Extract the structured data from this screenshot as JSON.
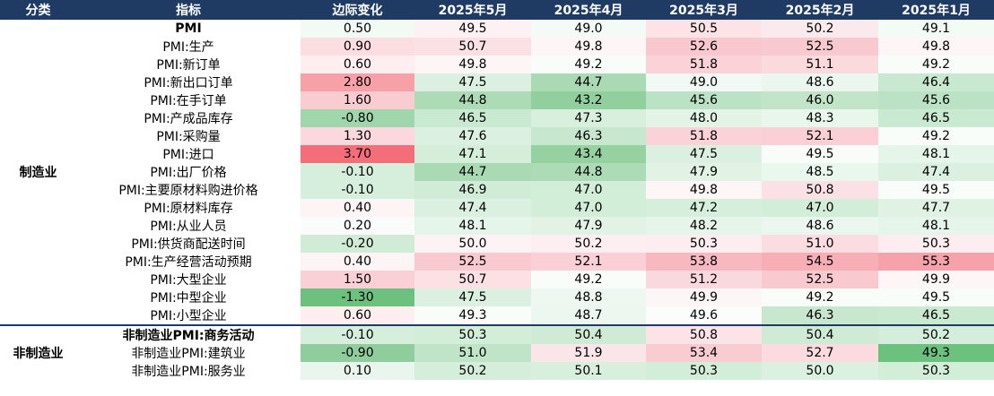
{
  "headers": [
    "分类",
    "指标",
    "边际变化",
    "2025年5月",
    "2025年4月",
    "2025年3月",
    "2025年2月",
    "2025年1月"
  ],
  "categories": [
    {
      "label": "制造业",
      "row_count": 17
    },
    {
      "label": "非制造业",
      "row_count": 3
    }
  ],
  "rows": [
    {
      "name": "PMI",
      "bold": true,
      "values": [
        "0.50",
        "49.5",
        "49.0",
        "50.5",
        "50.2",
        "49.1"
      ],
      "colors": [
        "#f1faf3",
        "#fef1f3",
        "#f4fbf6",
        "#fde2e6",
        "#fbeaed",
        "#f3fbf5"
      ]
    },
    {
      "name": "PMI:生产",
      "bold": false,
      "values": [
        "0.90",
        "50.7",
        "49.8",
        "52.6",
        "52.5",
        "49.8"
      ],
      "colors": [
        "#fcdde2",
        "#fbe0e4",
        "#fdf5f6",
        "#f9c7ce",
        "#f9c9d0",
        "#fdf5f6"
      ]
    },
    {
      "name": "PMI:新订单",
      "bold": false,
      "values": [
        "0.60",
        "49.8",
        "49.2",
        "51.8",
        "51.1",
        "49.2"
      ],
      "colors": [
        "#feeef0",
        "#fdf5f6",
        "#f8fdf9",
        "#fad2d8",
        "#fbdade",
        "#f8fdf9"
      ]
    },
    {
      "name": "PMI:新出口订单",
      "bold": false,
      "values": [
        "2.80",
        "47.5",
        "44.7",
        "49.0",
        "48.6",
        "46.4"
      ],
      "colors": [
        "#f7a0a8",
        "#dcf0e1",
        "#a9dab4",
        "#f0f9f3",
        "#ebf7ee",
        "#c8e8cf"
      ]
    },
    {
      "name": "PMI:在手订单",
      "bold": false,
      "values": [
        "1.60",
        "44.8",
        "43.2",
        "45.6",
        "46.0",
        "45.6"
      ],
      "colors": [
        "#f9ccd2",
        "#acdbb6",
        "#92cf9f",
        "#bbe2c4",
        "#c2e5ca",
        "#bbe2c4"
      ]
    },
    {
      "name": "PMI:产成品库存",
      "bold": false,
      "values": [
        "-0.80",
        "46.5",
        "47.3",
        "48.0",
        "48.3",
        "46.5"
      ],
      "colors": [
        "#a0d6ab",
        "#cae9d1",
        "#d8efde",
        "#e3f4e7",
        "#e8f6eb",
        "#cae9d1"
      ]
    },
    {
      "name": "PMI:采购量",
      "bold": false,
      "values": [
        "1.30",
        "47.6",
        "46.3",
        "51.8",
        "52.1",
        "49.2"
      ],
      "colors": [
        "#fbd8dd",
        "#dbf0e0",
        "#c7e7ce",
        "#fad2d8",
        "#facfd5",
        "#f8fdf9"
      ]
    },
    {
      "name": "PMI:进口",
      "bold": false,
      "values": [
        "3.70",
        "47.1",
        "43.4",
        "47.5",
        "49.5",
        "48.1"
      ],
      "colors": [
        "#f46e79",
        "#d4eeda",
        "#96d1a2",
        "#dcf0e1",
        "#f9fdfa",
        "#e5f5e9"
      ]
    },
    {
      "name": "PMI:出厂价格",
      "bold": false,
      "values": [
        "-0.10",
        "44.7",
        "44.8",
        "47.9",
        "48.5",
        "47.4"
      ],
      "colors": [
        "#d6eedc",
        "#a9dab4",
        "#acdbb6",
        "#e2f3e6",
        "#eaf7ed",
        "#dbf0e0"
      ]
    },
    {
      "name": "PMI:主要原材料购进价格",
      "bold": false,
      "values": [
        "-0.10",
        "46.9",
        "47.0",
        "49.8",
        "50.8",
        "49.5"
      ],
      "colors": [
        "#d6eedc",
        "#d0ecd6",
        "#d2edd8",
        "#fdf5f6",
        "#fbe1e5",
        "#f9fdfa"
      ]
    },
    {
      "name": "PMI:原材料库存",
      "bold": false,
      "values": [
        "0.40",
        "47.4",
        "47.0",
        "47.2",
        "47.0",
        "47.7"
      ],
      "colors": [
        "#fdf4f5",
        "#dbf0e0",
        "#d2edd8",
        "#d6eedc",
        "#d2edd8",
        "#dff2e4"
      ]
    },
    {
      "name": "PMI:从业人员",
      "bold": false,
      "values": [
        "0.20",
        "48.1",
        "47.9",
        "48.2",
        "48.6",
        "48.1"
      ],
      "colors": [
        "#f9fcfa",
        "#e5f5e9",
        "#e2f3e6",
        "#e6f5ea",
        "#ebf7ee",
        "#e5f5e9"
      ]
    },
    {
      "name": "PMI:供货商配送时间",
      "bold": false,
      "values": [
        "-0.20",
        "50.0",
        "50.2",
        "50.3",
        "51.0",
        "50.3"
      ],
      "colors": [
        "#d0ebd6",
        "#fef3f4",
        "#fdeff1",
        "#fdedf0",
        "#fbdde1",
        "#fdedf0"
      ]
    },
    {
      "name": "PMI:生产经营活动预期",
      "bold": false,
      "values": [
        "0.40",
        "52.5",
        "52.1",
        "53.8",
        "54.5",
        "55.3"
      ],
      "colors": [
        "#fdf4f5",
        "#f9c9d0",
        "#facfd5",
        "#f8b8c0",
        "#f7aeb6",
        "#f5a2ab"
      ]
    },
    {
      "name": "PMI:大型企业",
      "bold": false,
      "values": [
        "1.50",
        "50.7",
        "49.2",
        "51.2",
        "52.5",
        "49.9"
      ],
      "colors": [
        "#facfd5",
        "#fbe0e4",
        "#f8fdf9",
        "#fad9de",
        "#f9c9d0",
        "#fdf6f7"
      ]
    },
    {
      "name": "PMI:中型企业",
      "bold": false,
      "values": [
        "-1.30",
        "47.5",
        "48.8",
        "49.9",
        "49.2",
        "49.5"
      ],
      "colors": [
        "#6cc17e",
        "#dcf0e1",
        "#eef8f1",
        "#fdf6f7",
        "#f8fdf9",
        "#f9fdfa"
      ]
    },
    {
      "name": "PMI:小型企业",
      "bold": false,
      "values": [
        "0.60",
        "49.3",
        "48.7",
        "49.6",
        "46.3",
        "46.5"
      ],
      "colors": [
        "#feeef0",
        "#f8fdf9",
        "#ecf7ef",
        "#fafdfb",
        "#c7e7ce",
        "#cae9d1"
      ]
    },
    {
      "name": "非制造业PMI:商务活动",
      "bold": true,
      "values": [
        "-0.10",
        "50.3",
        "50.4",
        "50.8",
        "50.4",
        "50.2"
      ],
      "colors": [
        "#d6eedc",
        "#d2edd8",
        "#cfebd5",
        "#fbe3e7",
        "#cfebd5",
        "#d5eedb"
      ]
    },
    {
      "name": "非制造业PMI:建筑业",
      "bold": false,
      "values": [
        "-0.90",
        "51.0",
        "51.9",
        "53.4",
        "52.7",
        "49.3"
      ],
      "colors": [
        "#8fce9c",
        "#c0e4c8",
        "#fae6e9",
        "#f9ccd2",
        "#fbdbe0",
        "#6cc17e"
      ]
    },
    {
      "name": "非制造业PMI:服务业",
      "bold": false,
      "values": [
        "0.10",
        "50.2",
        "50.1",
        "50.3",
        "50.0",
        "50.3"
      ],
      "colors": [
        "#eaf6ed",
        "#d5eedb",
        "#d8efde",
        "#d2edd8",
        "#dbf0e0",
        "#d2edd8"
      ]
    }
  ]
}
